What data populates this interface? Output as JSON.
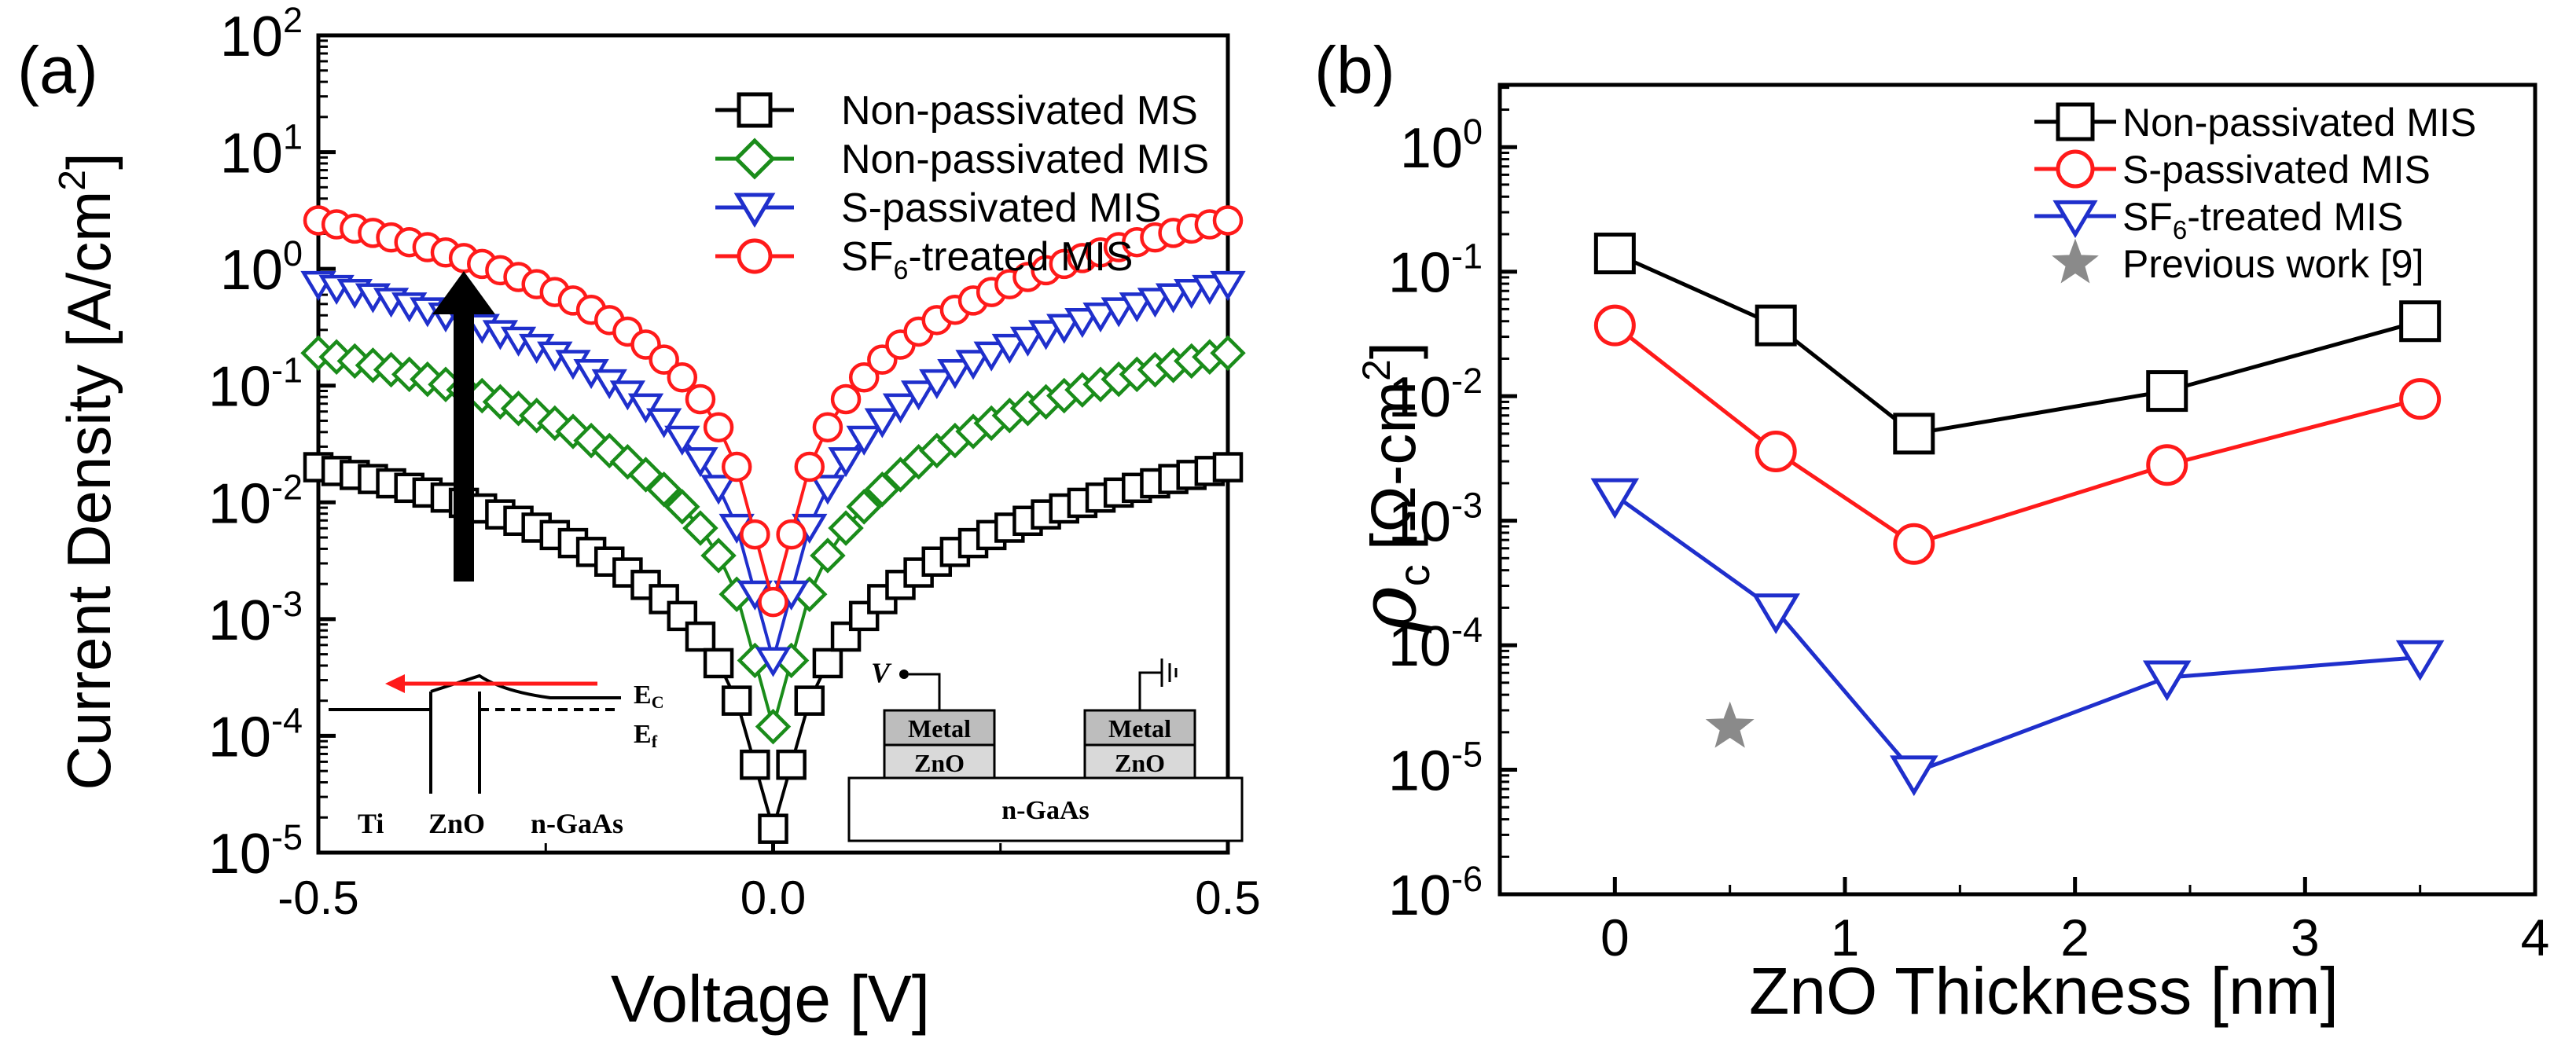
{
  "colors": {
    "axis": "#000000",
    "black": "#000000",
    "green": "#1a8c1a",
    "blue": "#1f2fcc",
    "red": "#ff1a1a",
    "grey": "#8a8a8a",
    "metal_fill": "#bdbdbd",
    "zno_fill": "#d9d9d9"
  },
  "panel_a": {
    "label": "(a)",
    "ylabel_main": "Current Density [A/cm",
    "ylabel_sup": "2",
    "ylabel_end": "]",
    "inset_band": {
      "labels": [
        "Ti",
        "ZnO",
        "n-GaAs"
      ],
      "ec_main": "E",
      "ec_sub": "C",
      "ef_main": "E",
      "ef_sub": "f"
    },
    "inset_device": {
      "v_label": "V",
      "metal": "Metal",
      "zno": "ZnO",
      "substrate": "n-GaAs"
    }
  },
  "panel_b": {
    "label": "(b)",
    "ylabel_rho": "ρ",
    "ylabel_sub": "c",
    "ylabel_unit": "[Ω-cm",
    "ylabel_sup": "2",
    "ylabel_end": "]"
  },
  "chart_data": [
    {
      "type": "line",
      "scale_y": "log",
      "title": "",
      "xlabel": "Voltage [V]",
      "ylabel": "Current Density [A/cm2]",
      "xlim": [
        -0.5,
        0.5
      ],
      "ylim_exp": [
        -5,
        2
      ],
      "xticks": [
        "-0.5",
        "0.0",
        "0.5"
      ],
      "yticks": [
        {
          "base": "10",
          "exp": "-5"
        },
        {
          "base": "10",
          "exp": "-4"
        },
        {
          "base": "10",
          "exp": "-3"
        },
        {
          "base": "10",
          "exp": "-2"
        },
        {
          "base": "10",
          "exp": "-1"
        },
        {
          "base": "10",
          "exp": "0"
        },
        {
          "base": "10",
          "exp": "1"
        },
        {
          "base": "10",
          "exp": "2"
        }
      ],
      "legend_position": "top-right",
      "series": [
        {
          "name": "Non-passivated MS",
          "name_main": "Non-passivated MS",
          "name_sub": "",
          "name_rest": "",
          "marker": "square",
          "color": "#000000",
          "j_at_half_volt": 0.02,
          "j_at_zero": 1.6e-05
        },
        {
          "name": "Non-passivated MIS",
          "name_main": "Non-passivated MIS",
          "name_sub": "",
          "name_rest": "",
          "marker": "diamond",
          "color": "#1a8c1a",
          "j_at_half_volt": 0.19,
          "j_at_zero": 0.00012
        },
        {
          "name": "S-passivated MIS",
          "name_main": "S-passivated MIS",
          "name_sub": "",
          "name_rest": "",
          "marker": "triangle-down",
          "color": "#1f2fcc",
          "j_at_half_volt": 0.75,
          "j_at_zero": 0.00045
        },
        {
          "name": "SF6-treated MIS",
          "name_main": "SF",
          "name_sub": "6",
          "name_rest": "-treated MIS",
          "marker": "circle",
          "color": "#ff1a1a",
          "j_at_half_volt": 2.6,
          "j_at_zero": 0.0014
        }
      ],
      "annotations": [
        "upward arrow indicating increasing current density"
      ]
    },
    {
      "type": "line",
      "scale_y": "log",
      "title": "",
      "xlabel": "ZnO Thickness [nm]",
      "ylabel": "ρc [Ω-cm2]",
      "xlim": [
        -0.5,
        4
      ],
      "ylim_exp": [
        -6,
        0.5
      ],
      "xticks": [
        "0",
        "1",
        "2",
        "3",
        "4"
      ],
      "yticks": [
        {
          "base": "10",
          "exp": "-6"
        },
        {
          "base": "10",
          "exp": "-5"
        },
        {
          "base": "10",
          "exp": "-4"
        },
        {
          "base": "10",
          "exp": "-3"
        },
        {
          "base": "10",
          "exp": "-2"
        },
        {
          "base": "10",
          "exp": "-1"
        },
        {
          "base": "10",
          "exp": "0"
        }
      ],
      "legend_position": "top-right",
      "x": [
        0,
        0.7,
        1.3,
        2.4,
        3.5
      ],
      "series": [
        {
          "name": "Non-passivated MIS",
          "name_main": "Non-passivated MIS",
          "name_sub": "",
          "name_rest": "",
          "marker": "square",
          "color": "#000000",
          "values": [
            0.14,
            0.037,
            0.005,
            0.011,
            0.04
          ]
        },
        {
          "name": "S-passivated MIS",
          "name_main": "S-passivated MIS",
          "name_sub": "",
          "name_rest": "",
          "marker": "circle",
          "color": "#ff1a1a",
          "values": [
            0.037,
            0.0036,
            0.00065,
            0.0028,
            0.0095
          ]
        },
        {
          "name": "SF6-treated MIS",
          "name_main": "SF",
          "name_sub": "6",
          "name_rest": "-treated MIS",
          "marker": "triangle-down",
          "color": "#1f2fcc",
          "values": [
            0.0016,
            0.00019,
            9.5e-06,
            5.5e-05,
            8e-05
          ]
        },
        {
          "name": "Previous work [9]",
          "name_main": "Previous work [9]",
          "name_sub": "",
          "name_rest": "",
          "marker": "star",
          "color": "#8a8a8a",
          "line": false,
          "x": [
            0.5
          ],
          "values": [
            2.2e-05
          ]
        }
      ]
    }
  ]
}
